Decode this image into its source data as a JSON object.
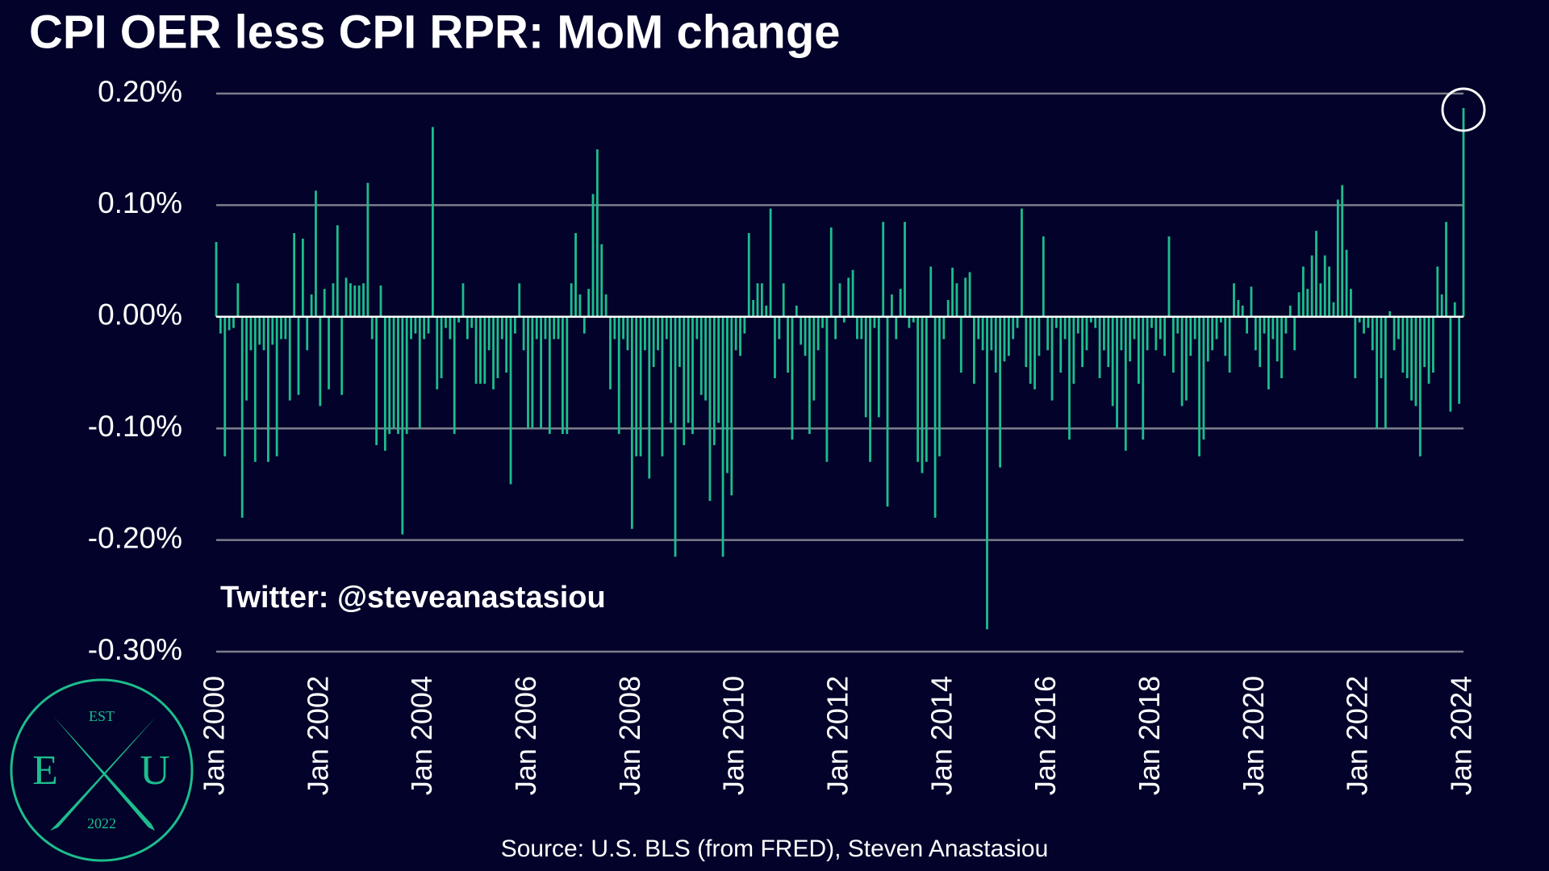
{
  "chart_data": {
    "type": "bar",
    "title": "CPI OER less CPI RPR: MoM change",
    "annotation": "Twitter: @steveanastasiou",
    "source": "Source: U.S. BLS (from FRED), Steven Anastasiou",
    "logo": {
      "top": "EST",
      "left": "E",
      "right": "U",
      "bottom": "2022"
    },
    "color": "#1dbd8d",
    "grid": true,
    "ylim": [
      -0.3,
      0.2
    ],
    "yticks": [
      {
        "value": -0.3,
        "label": "-0.30%"
      },
      {
        "value": -0.2,
        "label": "-0.20%"
      },
      {
        "value": -0.1,
        "label": "-0.10%"
      },
      {
        "value": 0,
        "label": "0.00%"
      },
      {
        "value": 0.1,
        "label": "0.10%"
      },
      {
        "value": 0.2,
        "label": "0.20%"
      }
    ],
    "xticks": [
      {
        "value": "2000-01",
        "label": "Jan 2000"
      },
      {
        "value": "2002-01",
        "label": "Jan 2002"
      },
      {
        "value": "2004-01",
        "label": "Jan 2004"
      },
      {
        "value": "2006-01",
        "label": "Jan 2006"
      },
      {
        "value": "2008-01",
        "label": "Jan 2008"
      },
      {
        "value": "2010-01",
        "label": "Jan 2010"
      },
      {
        "value": "2012-01",
        "label": "Jan 2012"
      },
      {
        "value": "2014-01",
        "label": "Jan 2014"
      },
      {
        "value": "2016-01",
        "label": "Jan 2016"
      },
      {
        "value": "2018-01",
        "label": "Jan 2018"
      },
      {
        "value": "2020-01",
        "label": "Jan 2020"
      },
      {
        "value": "2022-01",
        "label": "Jan 2022"
      },
      {
        "value": "2024-01",
        "label": "Jan 2024"
      }
    ],
    "x": [
      "2000-01",
      "2000-02",
      "2000-03",
      "2000-04",
      "2000-05",
      "2000-06",
      "2000-07",
      "2000-08",
      "2000-09",
      "2000-10",
      "2000-11",
      "2000-12",
      "2001-01",
      "2001-02",
      "2001-03",
      "2001-04",
      "2001-05",
      "2001-06",
      "2001-07",
      "2001-08",
      "2001-09",
      "2001-10",
      "2001-11",
      "2001-12",
      "2002-01",
      "2002-02",
      "2002-03",
      "2002-04",
      "2002-05",
      "2002-06",
      "2002-07",
      "2002-08",
      "2002-09",
      "2002-10",
      "2002-11",
      "2002-12",
      "2003-01",
      "2003-02",
      "2003-03",
      "2003-04",
      "2003-05",
      "2003-06",
      "2003-07",
      "2003-08",
      "2003-09",
      "2003-10",
      "2003-11",
      "2003-12",
      "2004-01",
      "2004-02",
      "2004-03",
      "2004-04",
      "2004-05",
      "2004-06",
      "2004-07",
      "2004-08",
      "2004-09",
      "2004-10",
      "2004-11",
      "2004-12",
      "2005-01",
      "2005-02",
      "2005-03",
      "2005-04",
      "2005-05",
      "2005-06",
      "2005-07",
      "2005-08",
      "2005-09",
      "2005-10",
      "2005-11",
      "2005-12",
      "2006-01",
      "2006-02",
      "2006-03",
      "2006-04",
      "2006-05",
      "2006-06",
      "2006-07",
      "2006-08",
      "2006-09",
      "2006-10",
      "2006-11",
      "2006-12",
      "2007-01",
      "2007-02",
      "2007-03",
      "2007-04",
      "2007-05",
      "2007-06",
      "2007-07",
      "2007-08",
      "2007-09",
      "2007-10",
      "2007-11",
      "2007-12",
      "2008-01",
      "2008-02",
      "2008-03",
      "2008-04",
      "2008-05",
      "2008-06",
      "2008-07",
      "2008-08",
      "2008-09",
      "2008-10",
      "2008-11",
      "2008-12",
      "2009-01",
      "2009-02",
      "2009-03",
      "2009-04",
      "2009-05",
      "2009-06",
      "2009-07",
      "2009-08",
      "2009-09",
      "2009-10",
      "2009-11",
      "2009-12",
      "2010-01",
      "2010-02",
      "2010-03",
      "2010-04",
      "2010-05",
      "2010-06",
      "2010-07",
      "2010-08",
      "2010-09",
      "2010-10",
      "2010-11",
      "2010-12",
      "2011-01",
      "2011-02",
      "2011-03",
      "2011-04",
      "2011-05",
      "2011-06",
      "2011-07",
      "2011-08",
      "2011-09",
      "2011-10",
      "2011-11",
      "2011-12",
      "2012-01",
      "2012-02",
      "2012-03",
      "2012-04",
      "2012-05",
      "2012-06",
      "2012-07",
      "2012-08",
      "2012-09",
      "2012-10",
      "2012-11",
      "2012-12",
      "2013-01",
      "2013-02",
      "2013-03",
      "2013-04",
      "2013-05",
      "2013-06",
      "2013-07",
      "2013-08",
      "2013-09",
      "2013-10",
      "2013-11",
      "2013-12",
      "2014-01",
      "2014-02",
      "2014-03",
      "2014-04",
      "2014-05",
      "2014-06",
      "2014-07",
      "2014-08",
      "2014-09",
      "2014-10",
      "2014-11",
      "2014-12",
      "2015-01",
      "2015-02",
      "2015-03",
      "2015-04",
      "2015-05",
      "2015-06",
      "2015-07",
      "2015-08",
      "2015-09",
      "2015-10",
      "2015-11",
      "2015-12",
      "2016-01",
      "2016-02",
      "2016-03",
      "2016-04",
      "2016-05",
      "2016-06",
      "2016-07",
      "2016-08",
      "2016-09",
      "2016-10",
      "2016-11",
      "2016-12",
      "2017-01",
      "2017-02",
      "2017-03",
      "2017-04",
      "2017-05",
      "2017-06",
      "2017-07",
      "2017-08",
      "2017-09",
      "2017-10",
      "2017-11",
      "2017-12",
      "2018-01",
      "2018-02",
      "2018-03",
      "2018-04",
      "2018-05",
      "2018-06",
      "2018-07",
      "2018-08",
      "2018-09",
      "2018-10",
      "2018-11",
      "2018-12",
      "2019-01",
      "2019-02",
      "2019-03",
      "2019-04",
      "2019-05",
      "2019-06",
      "2019-07",
      "2019-08",
      "2019-09",
      "2019-10",
      "2019-11",
      "2019-12",
      "2020-01",
      "2020-02",
      "2020-03",
      "2020-04",
      "2020-05",
      "2020-06",
      "2020-07",
      "2020-08",
      "2020-09",
      "2020-10",
      "2020-11",
      "2020-12",
      "2021-01",
      "2021-02",
      "2021-03",
      "2021-04",
      "2021-05",
      "2021-06",
      "2021-07",
      "2021-08",
      "2021-09",
      "2021-10",
      "2021-11",
      "2021-12",
      "2022-01",
      "2022-02",
      "2022-03",
      "2022-04",
      "2022-05",
      "2022-06",
      "2022-07",
      "2022-08",
      "2022-09",
      "2022-10",
      "2022-11",
      "2022-12",
      "2023-01",
      "2023-02",
      "2023-03",
      "2023-04",
      "2023-05",
      "2023-06",
      "2023-07",
      "2023-08",
      "2023-09",
      "2023-10",
      "2023-11",
      "2023-12",
      "2024-01"
    ],
    "values": [
      0.067,
      -0.015,
      -0.125,
      -0.012,
      -0.01,
      0.03,
      -0.18,
      -0.075,
      -0.03,
      -0.13,
      -0.025,
      -0.03,
      -0.13,
      -0.025,
      -0.125,
      -0.02,
      -0.02,
      -0.075,
      0.075,
      -0.07,
      0.07,
      -0.03,
      0.02,
      0.113,
      -0.08,
      0.025,
      -0.065,
      0.03,
      0.082,
      -0.07,
      0.035,
      0.03,
      0.028,
      0.028,
      0.03,
      0.12,
      -0.02,
      -0.115,
      0.028,
      -0.12,
      -0.105,
      -0.1,
      -0.105,
      -0.195,
      -0.105,
      -0.02,
      -0.015,
      -0.1,
      -0.02,
      -0.015,
      0.17,
      -0.065,
      -0.055,
      -0.01,
      -0.02,
      -0.105,
      -0.005,
      0.03,
      -0.02,
      -0.01,
      -0.06,
      -0.06,
      -0.06,
      -0.03,
      -0.065,
      -0.055,
      -0.02,
      -0.05,
      -0.15,
      -0.015,
      0.03,
      -0.03,
      -0.1,
      -0.1,
      -0.02,
      -0.1,
      -0.02,
      -0.105,
      -0.02,
      -0.02,
      -0.105,
      -0.105,
      0.03,
      0.075,
      0.02,
      -0.015,
      0.025,
      0.11,
      0.15,
      0.065,
      0.02,
      -0.065,
      -0.02,
      -0.105,
      -0.02,
      -0.03,
      -0.19,
      -0.125,
      -0.125,
      -0.03,
      -0.145,
      -0.045,
      -0.03,
      -0.125,
      -0.02,
      -0.095,
      -0.215,
      -0.045,
      -0.115,
      -0.095,
      -0.105,
      -0.02,
      -0.07,
      -0.075,
      -0.165,
      -0.115,
      -0.095,
      -0.215,
      -0.14,
      -0.16,
      -0.03,
      -0.035,
      -0.015,
      0.075,
      0.015,
      0.03,
      0.03,
      0.01,
      0.097,
      -0.055,
      -0.02,
      0.03,
      -0.05,
      -0.11,
      0.01,
      -0.025,
      -0.035,
      -0.105,
      -0.075,
      -0.03,
      -0.01,
      -0.13,
      0.08,
      -0.02,
      0.03,
      -0.005,
      0.035,
      0.042,
      -0.02,
      -0.02,
      -0.09,
      -0.13,
      -0.01,
      -0.09,
      0.085,
      -0.17,
      0.02,
      -0.02,
      0.025,
      0.085,
      -0.01,
      -0.005,
      -0.13,
      -0.14,
      -0.13,
      0.045,
      -0.18,
      -0.125,
      -0.02,
      0.015,
      0.044,
      0.03,
      -0.05,
      0.035,
      0.04,
      -0.06,
      -0.02,
      -0.03,
      -0.28,
      -0.03,
      -0.05,
      -0.135,
      -0.04,
      -0.035,
      -0.02,
      -0.01,
      0.097,
      -0.045,
      -0.06,
      -0.065,
      -0.035,
      0.072,
      -0.03,
      -0.075,
      -0.01,
      -0.05,
      -0.02,
      -0.11,
      -0.06,
      -0.015,
      -0.045,
      -0.03,
      -0.005,
      -0.01,
      -0.055,
      -0.03,
      -0.045,
      -0.08,
      -0.1,
      -0.03,
      -0.12,
      -0.04,
      -0.02,
      -0.06,
      -0.11,
      -0.03,
      -0.01,
      -0.03,
      -0.02,
      -0.035,
      0.072,
      -0.05,
      -0.015,
      -0.08,
      -0.075,
      -0.035,
      -0.02,
      -0.125,
      -0.11,
      -0.04,
      -0.03,
      -0.02,
      -0.005,
      -0.035,
      -0.05,
      0.03,
      0.015,
      0.01,
      -0.015,
      0.027,
      -0.03,
      -0.045,
      -0.015,
      -0.065,
      -0.02,
      -0.04,
      -0.055,
      -0.015,
      0.01,
      -0.03,
      0.022,
      0.045,
      0.025,
      0.055,
      0.077,
      0.03,
      0.055,
      0.045,
      0.013,
      0.105,
      0.118,
      0.06,
      0.025,
      -0.055,
      -0.005,
      -0.015,
      -0.01,
      -0.03,
      -0.1,
      -0.055,
      -0.1,
      0.005,
      -0.03,
      -0.02,
      -0.05,
      -0.055,
      -0.075,
      -0.08,
      -0.125,
      -0.045,
      -0.06,
      -0.05,
      0.045,
      0.02,
      0.085,
      -0.085,
      0.013,
      -0.078,
      0.187
    ]
  }
}
